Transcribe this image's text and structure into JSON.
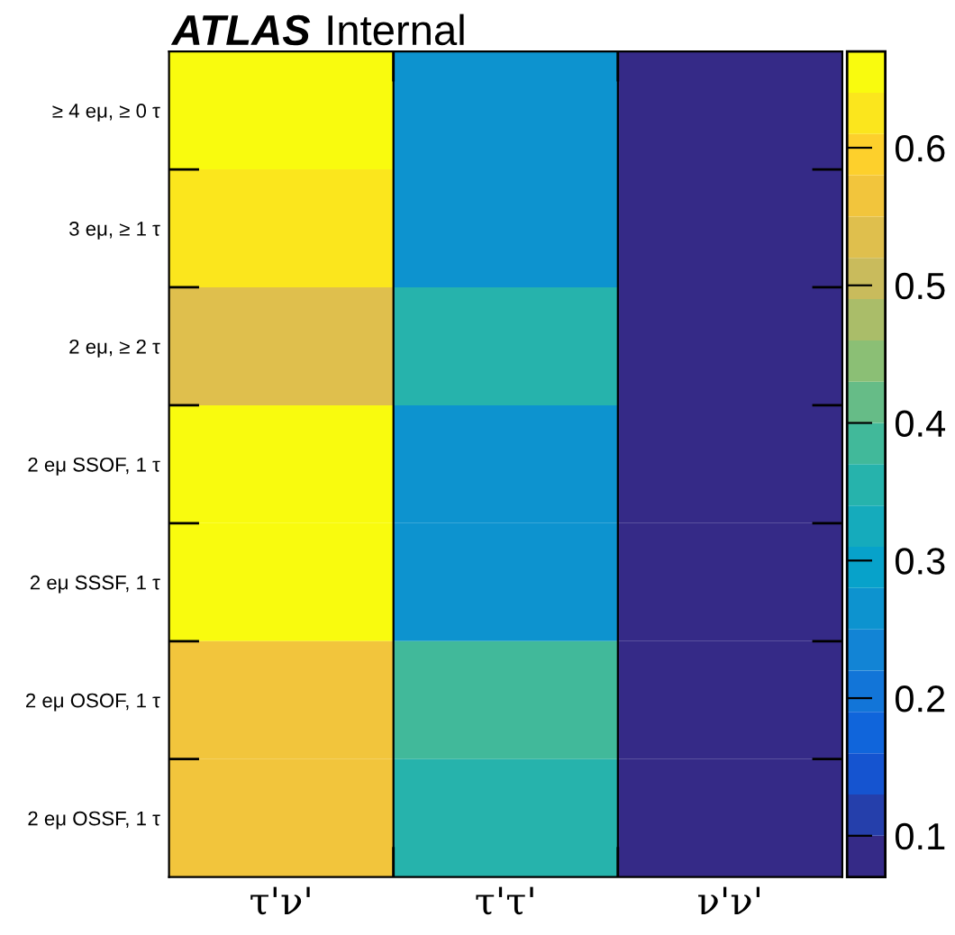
{
  "chart_data": {
    "type": "heatmap",
    "title": "ATLAS",
    "subtitle": "Internal",
    "categories": [
      "τ'ν'",
      "τ'τ'",
      "ν'ν'"
    ],
    "y_categories": [
      "≥ 4 eμ, ≥ 0 τ",
      "3 eμ, ≥ 1 τ",
      "2 eμ, ≥ 2 τ",
      "2 eμ SSOF, 1 τ",
      "2 eμ SSSF, 1 τ",
      "2 eμ OSOF, 1 τ",
      "2 eμ OSSF, 1 τ"
    ],
    "cells": [
      [
        0.66,
        0.26,
        0.08
      ],
      [
        0.62,
        0.26,
        0.08
      ],
      [
        0.55,
        0.34,
        0.08
      ],
      [
        0.66,
        0.26,
        0.08
      ],
      [
        0.66,
        0.26,
        0.08
      ],
      [
        0.56,
        0.38,
        0.08
      ],
      [
        0.56,
        0.34,
        0.08
      ]
    ],
    "clim": [
      0.07,
      0.67
    ],
    "cticks": [
      0.1,
      0.2,
      0.3,
      0.4,
      0.5,
      0.6
    ]
  }
}
